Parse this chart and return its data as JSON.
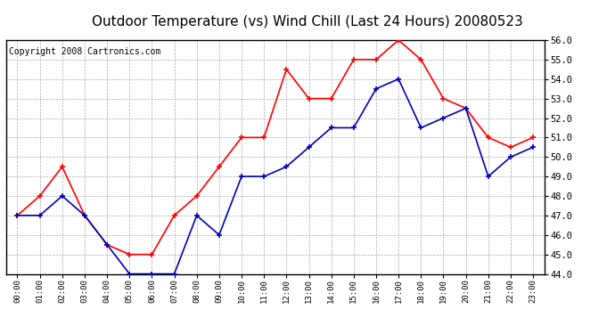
{
  "title": "Outdoor Temperature (vs) Wind Chill (Last 24 Hours) 20080523",
  "copyright": "Copyright 2008 Cartronics.com",
  "x_labels": [
    "00:00",
    "01:00",
    "02:00",
    "03:00",
    "04:00",
    "05:00",
    "06:00",
    "07:00",
    "08:00",
    "09:00",
    "10:00",
    "11:00",
    "12:00",
    "13:00",
    "14:00",
    "15:00",
    "16:00",
    "17:00",
    "18:00",
    "19:00",
    "20:00",
    "21:00",
    "22:00",
    "23:00"
  ],
  "red_data": [
    47.0,
    48.0,
    49.5,
    47.0,
    45.5,
    45.0,
    45.0,
    47.0,
    48.0,
    49.5,
    51.0,
    51.0,
    54.5,
    53.0,
    53.0,
    55.0,
    55.0,
    56.0,
    55.0,
    53.0,
    52.5,
    51.0,
    50.5,
    51.0
  ],
  "blue_data": [
    47.0,
    47.0,
    48.0,
    47.0,
    45.5,
    44.0,
    44.0,
    44.0,
    47.0,
    46.0,
    49.0,
    49.0,
    49.5,
    50.5,
    51.5,
    51.5,
    53.5,
    54.0,
    51.5,
    52.0,
    52.5,
    49.0,
    50.0,
    50.5
  ],
  "red_color": "#FF0000",
  "blue_color": "#0000BB",
  "ylim": [
    44.0,
    56.0
  ],
  "yticks": [
    44.0,
    45.0,
    46.0,
    47.0,
    48.0,
    49.0,
    50.0,
    51.0,
    52.0,
    53.0,
    54.0,
    55.0,
    56.0
  ],
  "background_color": "#FFFFFF",
  "plot_background": "#FFFFFF",
  "grid_color": "#AAAAAA",
  "title_fontsize": 11,
  "copyright_fontsize": 7
}
